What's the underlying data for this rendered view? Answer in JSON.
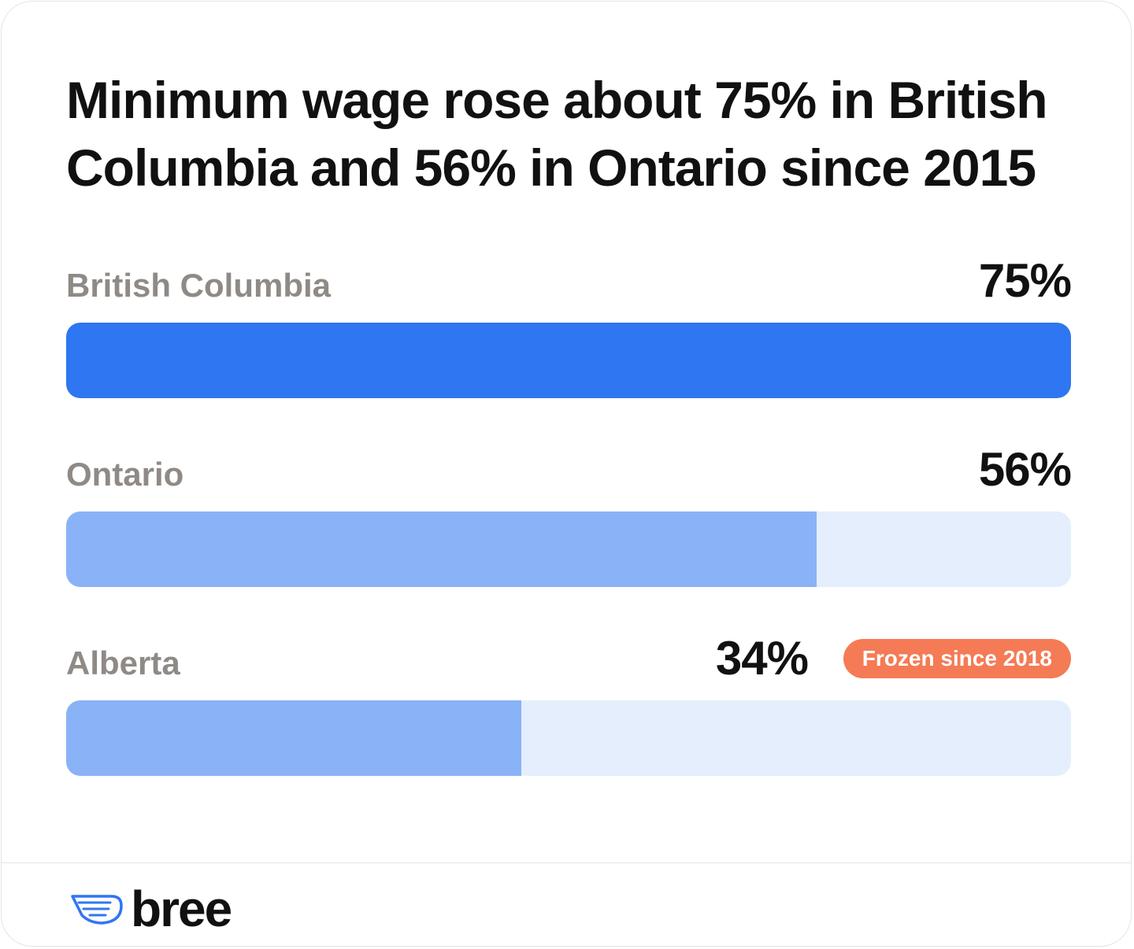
{
  "title": "Minimum wage rose about 75% in British Columbia and 56% in Ontario since 2015",
  "chart_data": {
    "type": "bar",
    "orientation": "horizontal",
    "title": "Minimum wage rose about 75% in British Columbia and 56% in Ontario since 2015",
    "categories": [
      "British Columbia",
      "Ontario",
      "Alberta"
    ],
    "values": [
      75,
      56,
      34
    ],
    "value_labels": [
      "75%",
      "56%",
      "34%"
    ],
    "xlim": [
      0,
      75
    ],
    "grid": false,
    "annotations": [
      {
        "category": "Alberta",
        "text": "Frozen since 2018"
      }
    ],
    "colors": {
      "highlight": "#2f76f2",
      "bar": "#8ab2f6",
      "track": "#e5eefc",
      "badge": "#f47b55"
    }
  },
  "bars": [
    {
      "label": "British Columbia",
      "value_label": "75%",
      "value": 75,
      "color": "#2f76f2"
    },
    {
      "label": "Ontario",
      "value_label": "56%",
      "value": 56,
      "color": "#8ab2f6"
    },
    {
      "label": "Alberta",
      "value_label": "34%",
      "value": 34,
      "color": "#8ab2f6",
      "badge": "Frozen since 2018"
    }
  ],
  "footer": {
    "logo_text": "bree",
    "logo_icon": "wing-icon",
    "brand_color": "#2f76f2"
  }
}
